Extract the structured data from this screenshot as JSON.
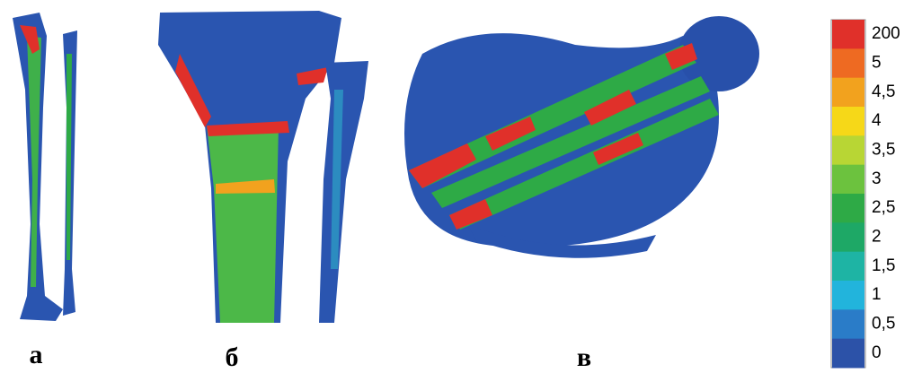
{
  "panels": [
    {
      "label": "а"
    },
    {
      "label": "б"
    },
    {
      "label": "в"
    }
  ],
  "legend": {
    "labels": [
      "200",
      "5",
      "4,5",
      "4",
      "3,5",
      "3",
      "2,5",
      "2",
      "1,5",
      "1",
      "0,5",
      "0"
    ],
    "colors": [
      "#e0302a",
      "#ee6a22",
      "#f2a21e",
      "#f6d818",
      "#b8d634",
      "#6cc23e",
      "#2eaa46",
      "#1ea866",
      "#1eb4a4",
      "#22b4dc",
      "#2a7cc8",
      "#2c52a8"
    ]
  }
}
